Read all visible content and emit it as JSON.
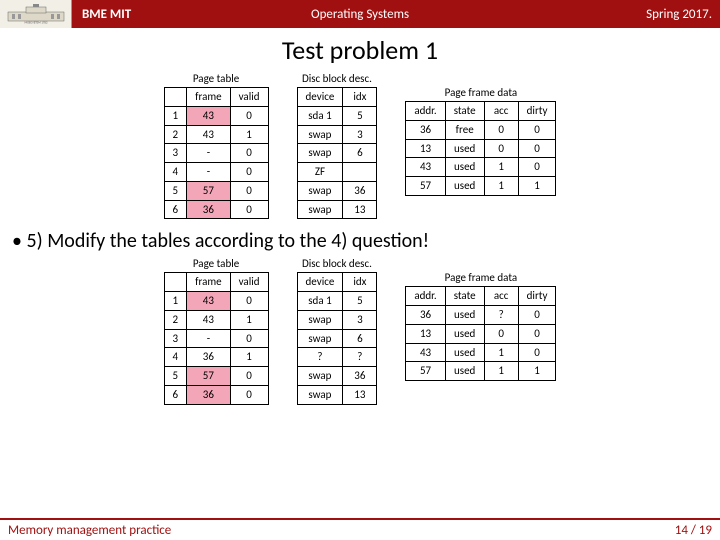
{
  "colors": {
    "brand": "#a01010",
    "highlight": "#f4a6b9",
    "bg": "#ffffff",
    "border": "#000000"
  },
  "header": {
    "dept": "BME MIT",
    "course": "Operating Systems",
    "term": "Spring 2017."
  },
  "title": "Test problem 1",
  "upper": {
    "page_table": {
      "caption": "Page table",
      "columns": [
        "",
        "frame",
        "valid"
      ],
      "rows": [
        {
          "n": "1",
          "frame": "43",
          "valid": "0",
          "hl": true
        },
        {
          "n": "2",
          "frame": "43",
          "valid": "1"
        },
        {
          "n": "3",
          "frame": "-",
          "valid": "0"
        },
        {
          "n": "4",
          "frame": "-",
          "valid": "0"
        },
        {
          "n": "5",
          "frame": "57",
          "valid": "0",
          "hl": true
        },
        {
          "n": "6",
          "frame": "36",
          "valid": "0",
          "hl": true
        }
      ]
    },
    "disc": {
      "caption": "Disc block desc.",
      "columns": [
        "device",
        "idx"
      ],
      "rows": [
        [
          "sda 1",
          "5"
        ],
        [
          "swap",
          "3"
        ],
        [
          "swap",
          "6"
        ],
        [
          "ZF",
          ""
        ],
        [
          "swap",
          "36"
        ],
        [
          "swap",
          "13"
        ]
      ]
    },
    "pfd": {
      "caption": "Page frame data",
      "columns": [
        "addr.",
        "state",
        "acc",
        "dirty"
      ],
      "rows": [
        [
          "36",
          "free",
          "0",
          "0"
        ],
        [
          "13",
          "used",
          "0",
          "0"
        ],
        [
          "43",
          "used",
          "1",
          "0"
        ],
        [
          "57",
          "used",
          "1",
          "1"
        ]
      ]
    }
  },
  "question": "• 5) Modify the tables according to the 4) question!",
  "lower": {
    "page_table": {
      "caption": "Page table",
      "columns": [
        "",
        "frame",
        "valid"
      ],
      "rows": [
        {
          "n": "1",
          "frame": "43",
          "valid": "0",
          "hl": true
        },
        {
          "n": "2",
          "frame": "43",
          "valid": "1"
        },
        {
          "n": "3",
          "frame": "-",
          "valid": "0"
        },
        {
          "n": "4",
          "frame": "36",
          "valid": "1"
        },
        {
          "n": "5",
          "frame": "57",
          "valid": "0",
          "hl": true
        },
        {
          "n": "6",
          "frame": "36",
          "valid": "0",
          "hl": true
        }
      ]
    },
    "disc": {
      "caption": "Disc block desc.",
      "columns": [
        "device",
        "idx"
      ],
      "rows": [
        [
          "sda 1",
          "5"
        ],
        [
          "swap",
          "3"
        ],
        [
          "swap",
          "6"
        ],
        [
          "?",
          "?"
        ],
        [
          "swap",
          "36"
        ],
        [
          "swap",
          "13"
        ]
      ]
    },
    "pfd": {
      "caption": "Page frame data",
      "columns": [
        "addr.",
        "state",
        "acc",
        "dirty"
      ],
      "rows": [
        [
          "36",
          "used",
          "?",
          "0"
        ],
        [
          "13",
          "used",
          "0",
          "0"
        ],
        [
          "43",
          "used",
          "1",
          "0"
        ],
        [
          "57",
          "used",
          "1",
          "1"
        ]
      ]
    }
  },
  "footer": {
    "left": "Memory management practice",
    "page": "14 / 19"
  }
}
